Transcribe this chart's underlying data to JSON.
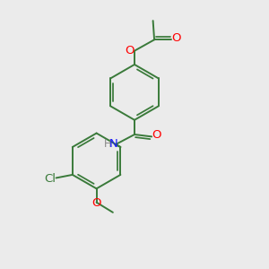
{
  "background_color": "#ebebeb",
  "bond_color": "#3a7a3a",
  "atom_colors": {
    "O": "#ff0000",
    "N": "#1a1aff",
    "Cl": "#3a7a3a",
    "C": "#3a7a3a",
    "H": "#888888"
  },
  "figsize": [
    3.0,
    3.0
  ],
  "dpi": 100,
  "lw": 1.4,
  "inner_lw": 1.2,
  "font_size": 9.5,
  "inner_ratio": 0.75
}
